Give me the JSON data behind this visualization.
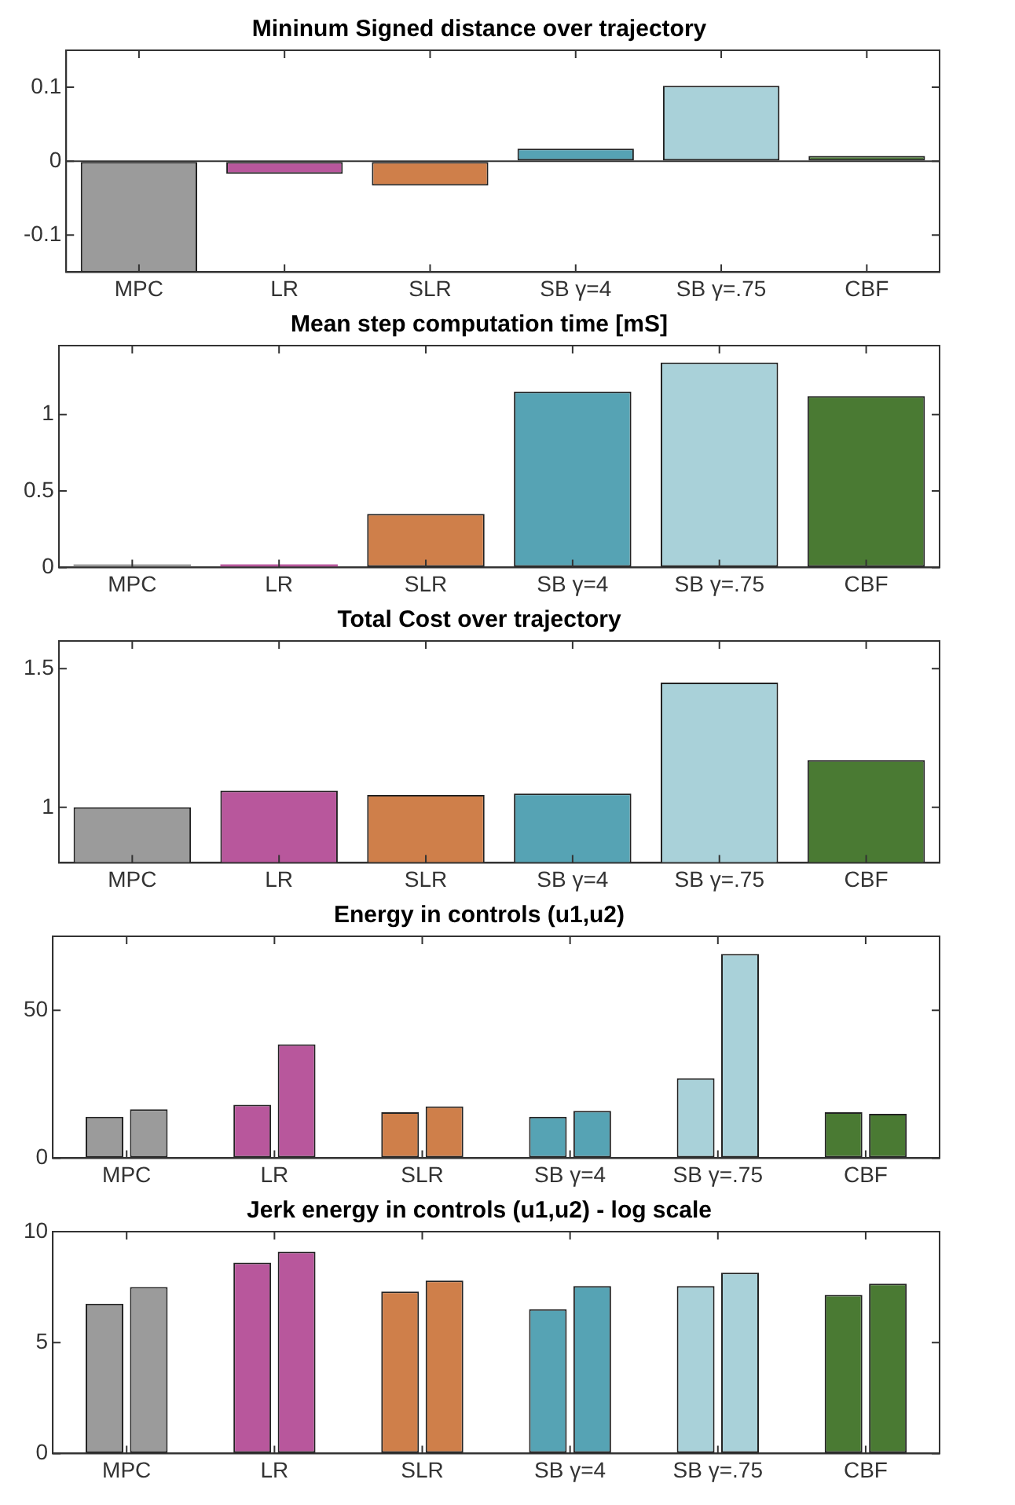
{
  "chart_data": [
    {
      "type": "bar",
      "title": "Mininum Signed distance over trajectory",
      "categories": [
        "MPC",
        "LR",
        "SLR",
        "SB γ=4",
        "SB γ=.75",
        "CBF"
      ],
      "values": [
        -0.15,
        -0.017,
        -0.033,
        0.017,
        0.102,
        0.007
      ],
      "colors": [
        "#9b9b9b",
        "#b8579c",
        "#cf7f4a",
        "#56a3b4",
        "#a9d1d9",
        "#4a7a33"
      ],
      "ylim": [
        -0.15,
        0.15
      ],
      "yticks": [
        -0.1,
        0,
        0.1
      ],
      "grid": false,
      "legend": false,
      "ref_lines": [
        {
          "axis": "y",
          "value": 0,
          "color": "#333333"
        }
      ]
    },
    {
      "type": "bar",
      "title": "Mean step computation time [mS]",
      "categories": [
        "MPC",
        "LR",
        "SLR",
        "SB γ=4",
        "SB γ=.75",
        "CBF"
      ],
      "values": [
        0.02,
        0.02,
        0.35,
        1.15,
        1.34,
        1.12
      ],
      "colors": [
        "#9b9b9b",
        "#b8579c",
        "#cf7f4a",
        "#56a3b4",
        "#a9d1d9",
        "#4a7a33"
      ],
      "ylim": [
        0,
        1.45
      ],
      "yticks": [
        0,
        0.5,
        1
      ],
      "grid": false,
      "legend": false
    },
    {
      "type": "bar",
      "title": "Total Cost over trajectory",
      "categories": [
        "MPC",
        "LR",
        "SLR",
        "SB γ=4",
        "SB γ=.75",
        "CBF"
      ],
      "values": [
        1.0,
        1.06,
        1.045,
        1.05,
        1.45,
        1.17
      ],
      "colors": [
        "#9b9b9b",
        "#b8579c",
        "#cf7f4a",
        "#56a3b4",
        "#a9d1d9",
        "#4a7a33"
      ],
      "ylim": [
        0.8,
        1.6
      ],
      "yticks": [
        1,
        1.5
      ],
      "grid": false,
      "legend": false
    },
    {
      "type": "bar",
      "title": "Energy in controls (u1,u2)",
      "categories": [
        "MPC",
        "LR",
        "SLR",
        "SB γ=4",
        "SB γ=.75",
        "CBF"
      ],
      "series": [
        {
          "colors": [
            "#9b9b9b",
            "#b8579c",
            "#cf7f4a",
            "#56a3b4",
            "#a9d1d9",
            "#4a7a33"
          ],
          "values": [
            14,
            18,
            15.5,
            14,
            27,
            15.5
          ]
        },
        {
          "colors": [
            "#9b9b9b",
            "#b8579c",
            "#cf7f4a",
            "#56a3b4",
            "#a9d1d9",
            "#4a7a33"
          ],
          "values": [
            16.5,
            38.5,
            17.5,
            16,
            69,
            15
          ]
        }
      ],
      "ylim": [
        0,
        75
      ],
      "yticks": [
        0,
        50
      ],
      "grid": false,
      "legend": false
    },
    {
      "type": "bar",
      "title": "Jerk energy in controls (u1,u2) - log scale",
      "categories": [
        "MPC",
        "LR",
        "SLR",
        "SB γ=4",
        "SB γ=.75",
        "CBF"
      ],
      "series": [
        {
          "colors": [
            "#9b9b9b",
            "#b8579c",
            "#cf7f4a",
            "#56a3b4",
            "#a9d1d9",
            "#4a7a33"
          ],
          "values": [
            6.75,
            8.6,
            7.3,
            6.5,
            7.55,
            7.15
          ]
        },
        {
          "colors": [
            "#9b9b9b",
            "#b8579c",
            "#cf7f4a",
            "#56a3b4",
            "#a9d1d9",
            "#4a7a33"
          ],
          "values": [
            7.5,
            9.1,
            7.8,
            7.55,
            8.15,
            7.65
          ]
        }
      ],
      "ylim": [
        0,
        10
      ],
      "yticks": [
        0,
        5,
        10
      ],
      "grid": false,
      "legend": false
    }
  ]
}
